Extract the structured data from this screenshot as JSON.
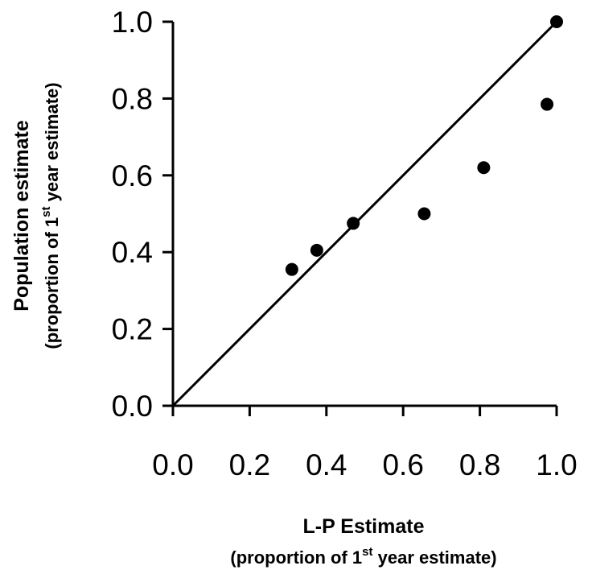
{
  "chart_data": {
    "type": "scatter",
    "xlabel": "L-P Estimate",
    "xlabel_sub": {
      "before": "(proportion of 1",
      "sup": "st",
      "after": "  year estimate)"
    },
    "ylabel": "Population estimate",
    "ylabel_sub": {
      "before": "(proportion of 1",
      "sup": "st",
      "after": "  year estimate)"
    },
    "xlim": [
      0,
      1
    ],
    "ylim": [
      0,
      1
    ],
    "xticks": [
      0.0,
      0.2,
      0.4,
      0.6,
      0.8,
      1.0
    ],
    "yticks": [
      0.0,
      0.2,
      0.4,
      0.6,
      0.8,
      1.0
    ],
    "xtick_labels": [
      "0.0",
      "0.2",
      "0.4",
      "0.6",
      "0.8",
      "1.0"
    ],
    "ytick_labels": [
      "0.0",
      "0.2",
      "0.4",
      "0.6",
      "0.8",
      "1.0"
    ],
    "points": [
      {
        "x": 0.31,
        "y": 0.355
      },
      {
        "x": 0.375,
        "y": 0.405
      },
      {
        "x": 0.47,
        "y": 0.475
      },
      {
        "x": 0.655,
        "y": 0.5
      },
      {
        "x": 0.81,
        "y": 0.62
      },
      {
        "x": 0.975,
        "y": 0.785
      },
      {
        "x": 1.0,
        "y": 1.0
      }
    ],
    "reference_line": {
      "from": [
        0,
        0
      ],
      "to": [
        1,
        1
      ]
    },
    "grid": false,
    "legend": "none",
    "marker_color": "#000000"
  }
}
